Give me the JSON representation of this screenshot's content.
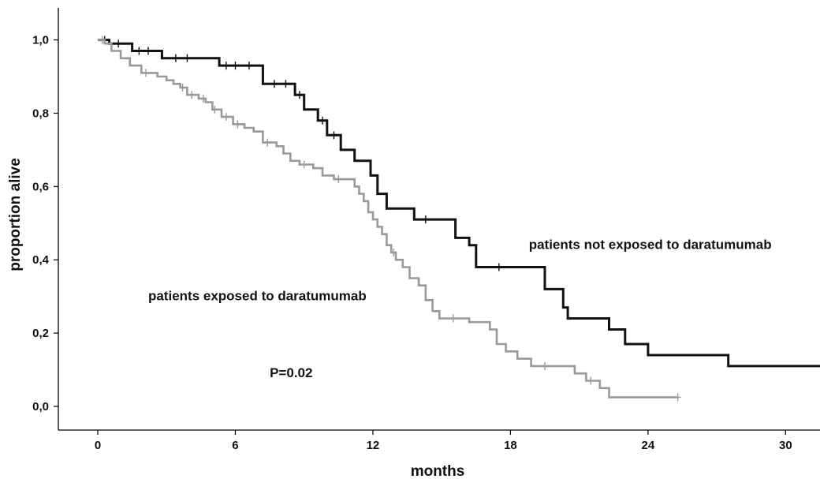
{
  "chart_data": {
    "type": "line",
    "subtype": "kaplan-meier step curve",
    "xlabel": "months",
    "ylabel": "proportion alive",
    "xlim": [
      0,
      31.5
    ],
    "ylim": [
      0,
      1.04
    ],
    "xticks": [
      0,
      6,
      12,
      18,
      24,
      30
    ],
    "xtick_labels": [
      "0",
      "6",
      "12",
      "18",
      "24",
      "30"
    ],
    "yticks": [
      0,
      0.2,
      0.4,
      0.6,
      0.8,
      1.0
    ],
    "ytick_labels": [
      "0,0",
      "0,2",
      "0,4",
      "0,6",
      "0,8",
      "1,0"
    ],
    "grid": false,
    "annotations": [
      {
        "text": "patients not exposed to daratumumab",
        "x": 18.8,
        "y": 0.43
      },
      {
        "text": "patients exposed to daratumumab",
        "x": 2.2,
        "y": 0.29
      },
      {
        "text": "P=0.02",
        "x": 7.5,
        "y": 0.08
      }
    ],
    "series": [
      {
        "color": "#111111",
        "steps": [
          [
            0,
            1.0
          ],
          [
            0.5,
            0.99
          ],
          [
            1.5,
            0.97
          ],
          [
            2.8,
            0.95
          ],
          [
            5.3,
            0.93
          ],
          [
            7.2,
            0.88
          ],
          [
            8.6,
            0.85
          ],
          [
            9.0,
            0.81
          ],
          [
            9.6,
            0.78
          ],
          [
            10.0,
            0.74
          ],
          [
            10.6,
            0.7
          ],
          [
            11.2,
            0.67
          ],
          [
            11.9,
            0.63
          ],
          [
            12.2,
            0.58
          ],
          [
            12.6,
            0.54
          ],
          [
            13.8,
            0.51
          ],
          [
            15.6,
            0.46
          ],
          [
            16.2,
            0.44
          ],
          [
            16.5,
            0.38
          ],
          [
            19.5,
            0.32
          ],
          [
            20.3,
            0.27
          ],
          [
            20.5,
            0.24
          ],
          [
            22.3,
            0.21
          ],
          [
            23.0,
            0.17
          ],
          [
            24.0,
            0.14
          ],
          [
            27.5,
            0.11
          ],
          [
            31.5,
            0.11
          ]
        ],
        "censored": [
          [
            0.3,
            1.0
          ],
          [
            0.9,
            0.99
          ],
          [
            1.8,
            0.97
          ],
          [
            2.2,
            0.97
          ],
          [
            3.4,
            0.95
          ],
          [
            3.9,
            0.95
          ],
          [
            5.6,
            0.93
          ],
          [
            6.0,
            0.93
          ],
          [
            6.6,
            0.93
          ],
          [
            7.7,
            0.88
          ],
          [
            8.2,
            0.88
          ],
          [
            8.8,
            0.85
          ],
          [
            9.8,
            0.78
          ],
          [
            10.3,
            0.74
          ],
          [
            14.3,
            0.51
          ],
          [
            17.5,
            0.38
          ]
        ]
      },
      {
        "color": "#999999",
        "steps": [
          [
            0,
            1.0
          ],
          [
            0.3,
            0.99
          ],
          [
            0.6,
            0.97
          ],
          [
            1.0,
            0.95
          ],
          [
            1.4,
            0.93
          ],
          [
            1.9,
            0.91
          ],
          [
            2.6,
            0.9
          ],
          [
            3.0,
            0.89
          ],
          [
            3.3,
            0.88
          ],
          [
            3.6,
            0.87
          ],
          [
            3.9,
            0.85
          ],
          [
            4.4,
            0.84
          ],
          [
            4.7,
            0.83
          ],
          [
            5.0,
            0.81
          ],
          [
            5.4,
            0.79
          ],
          [
            5.9,
            0.77
          ],
          [
            6.4,
            0.76
          ],
          [
            6.8,
            0.75
          ],
          [
            7.2,
            0.72
          ],
          [
            7.8,
            0.71
          ],
          [
            8.1,
            0.69
          ],
          [
            8.4,
            0.67
          ],
          [
            8.8,
            0.66
          ],
          [
            9.4,
            0.65
          ],
          [
            9.8,
            0.63
          ],
          [
            10.3,
            0.62
          ],
          [
            11.2,
            0.6
          ],
          [
            11.4,
            0.58
          ],
          [
            11.6,
            0.56
          ],
          [
            11.8,
            0.53
          ],
          [
            12.0,
            0.51
          ],
          [
            12.2,
            0.49
          ],
          [
            12.4,
            0.47
          ],
          [
            12.6,
            0.44
          ],
          [
            12.8,
            0.42
          ],
          [
            13.0,
            0.4
          ],
          [
            13.3,
            0.38
          ],
          [
            13.6,
            0.35
          ],
          [
            14.0,
            0.33
          ],
          [
            14.3,
            0.29
          ],
          [
            14.6,
            0.26
          ],
          [
            14.9,
            0.24
          ],
          [
            16.2,
            0.23
          ],
          [
            17.1,
            0.21
          ],
          [
            17.4,
            0.17
          ],
          [
            17.8,
            0.15
          ],
          [
            18.3,
            0.13
          ],
          [
            18.9,
            0.11
          ],
          [
            20.8,
            0.09
          ],
          [
            21.3,
            0.07
          ],
          [
            21.9,
            0.05
          ],
          [
            22.3,
            0.025
          ],
          [
            25.3,
            0.025
          ]
        ],
        "censored": [
          [
            0.2,
            1.0
          ],
          [
            2.1,
            0.91
          ],
          [
            3.7,
            0.87
          ],
          [
            4.1,
            0.85
          ],
          [
            4.6,
            0.84
          ],
          [
            5.1,
            0.81
          ],
          [
            5.6,
            0.79
          ],
          [
            6.1,
            0.77
          ],
          [
            7.4,
            0.72
          ],
          [
            9.0,
            0.66
          ],
          [
            10.5,
            0.62
          ],
          [
            12.9,
            0.42
          ],
          [
            15.5,
            0.24
          ],
          [
            19.5,
            0.11
          ],
          [
            21.5,
            0.07
          ],
          [
            25.3,
            0.025
          ]
        ]
      }
    ]
  }
}
